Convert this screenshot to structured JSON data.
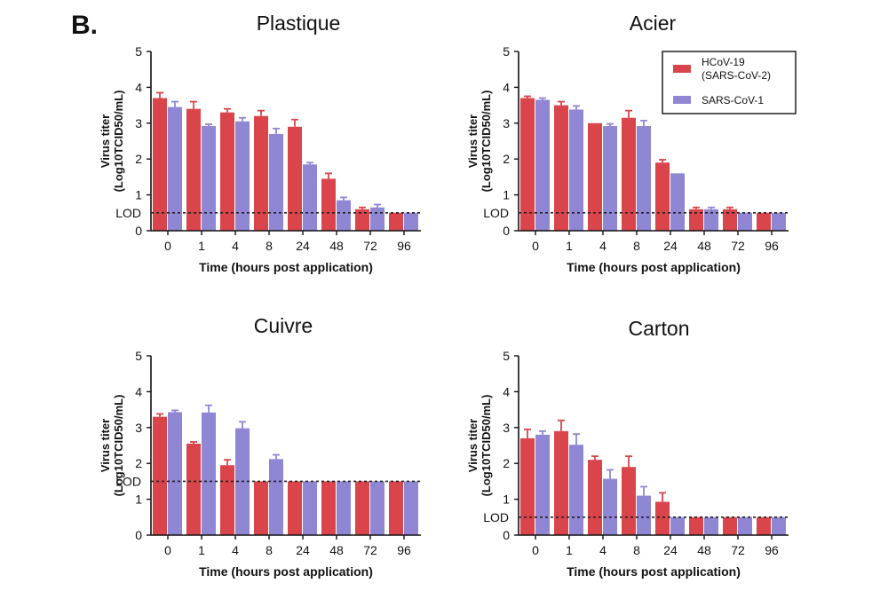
{
  "figure": {
    "panel_label": "B."
  },
  "colors": {
    "series1": "#d9454a",
    "series2": "#8f86d4",
    "axis": "#111111",
    "lod_line": "#222222"
  },
  "chart_data": [
    {
      "type": "bar",
      "title": "Plastique",
      "xlabel": "Time (hours post application)",
      "ylabel": "Virus titer",
      "ylabel_unit": "(Log10TCID50/mL)",
      "categories": [
        "0",
        "1",
        "4",
        "8",
        "24",
        "48",
        "72",
        "96"
      ],
      "ylim": [
        0,
        5
      ],
      "yticks": [
        "0",
        "1",
        "2",
        "3",
        "4",
        "5"
      ],
      "lod": {
        "label": "LOD",
        "value": 0.5
      },
      "series": [
        {
          "name": "HCoV-19 (SARS-CoV-2)",
          "values": [
            3.7,
            3.4,
            3.3,
            3.2,
            2.9,
            1.45,
            0.6,
            0.5
          ],
          "errors": [
            0.15,
            0.2,
            0.1,
            0.15,
            0.2,
            0.15,
            0.05,
            0.0
          ]
        },
        {
          "name": "SARS-CoV-1",
          "values": [
            3.45,
            2.92,
            3.05,
            2.7,
            1.85,
            0.85,
            0.65,
            0.5
          ],
          "errors": [
            0.15,
            0.05,
            0.1,
            0.15,
            0.05,
            0.08,
            0.08,
            0.0
          ]
        }
      ]
    },
    {
      "type": "bar",
      "title": "Acier",
      "xlabel": "Time (hours post application)",
      "ylabel": "Virus titer",
      "ylabel_unit": "(Log10TCID50/mL)",
      "categories": [
        "0",
        "1",
        "4",
        "8",
        "24",
        "48",
        "72",
        "96"
      ],
      "ylim": [
        0,
        5
      ],
      "yticks": [
        "0",
        "1",
        "2",
        "3",
        "4",
        "5"
      ],
      "lod": {
        "label": "LOD",
        "value": 0.5
      },
      "legend": {
        "placement": "top-right"
      },
      "series": [
        {
          "name": "HCoV-19 (SARS-CoV-2)",
          "values": [
            3.7,
            3.5,
            3.0,
            3.15,
            1.9,
            0.6,
            0.6,
            0.5
          ],
          "errors": [
            0.05,
            0.1,
            0.0,
            0.2,
            0.08,
            0.05,
            0.05,
            0.0
          ]
        },
        {
          "name": "SARS-CoV-1",
          "values": [
            3.65,
            3.38,
            2.92,
            2.92,
            1.6,
            0.6,
            0.5,
            0.5
          ],
          "errors": [
            0.05,
            0.1,
            0.06,
            0.15,
            0.0,
            0.05,
            0.0,
            0.0
          ]
        }
      ]
    },
    {
      "type": "bar",
      "title": "Cuivre",
      "xlabel": "Time (hours post application)",
      "ylabel": "Virus titer",
      "ylabel_unit": "(Log10TCID50/mL)",
      "categories": [
        "0",
        "1",
        "4",
        "8",
        "24",
        "48",
        "72",
        "96"
      ],
      "ylim": [
        0,
        5
      ],
      "yticks": [
        "0",
        "1",
        "2",
        "3",
        "4",
        "5"
      ],
      "lod": {
        "label": "LOD",
        "value": 1.5
      },
      "series": [
        {
          "name": "HCoV-19 (SARS-CoV-2)",
          "values": [
            3.3,
            2.55,
            1.95,
            1.5,
            1.5,
            1.5,
            1.5,
            1.5
          ],
          "errors": [
            0.08,
            0.05,
            0.15,
            0.0,
            0.0,
            0.0,
            0.0,
            0.0
          ]
        },
        {
          "name": "SARS-CoV-1",
          "values": [
            3.43,
            3.42,
            2.98,
            2.12,
            1.5,
            1.5,
            1.5,
            1.5
          ],
          "errors": [
            0.05,
            0.2,
            0.18,
            0.12,
            0.0,
            0.0,
            0.0,
            0.0
          ]
        }
      ]
    },
    {
      "type": "bar",
      "title": "Carton",
      "xlabel": "Time (hours post application)",
      "ylabel": "Virus titer",
      "ylabel_unit": "(Log10TCID50/mL)",
      "categories": [
        "0",
        "1",
        "4",
        "8",
        "24",
        "48",
        "72",
        "96"
      ],
      "ylim": [
        0,
        5
      ],
      "yticks": [
        "0",
        "1",
        "2",
        "3",
        "4",
        "5"
      ],
      "lod": {
        "label": "LOD",
        "value": 0.5
      },
      "series": [
        {
          "name": "HCoV-19 (SARS-CoV-2)",
          "values": [
            2.7,
            2.9,
            2.1,
            1.9,
            0.93,
            0.5,
            0.5,
            0.5
          ],
          "errors": [
            0.25,
            0.3,
            0.1,
            0.3,
            0.25,
            0.0,
            0.0,
            0.0
          ]
        },
        {
          "name": "SARS-CoV-1",
          "values": [
            2.8,
            2.52,
            1.57,
            1.1,
            0.5,
            0.5,
            0.5,
            0.5
          ],
          "errors": [
            0.1,
            0.3,
            0.25,
            0.25,
            0.0,
            0.0,
            0.0,
            0.0
          ]
        }
      ]
    }
  ]
}
